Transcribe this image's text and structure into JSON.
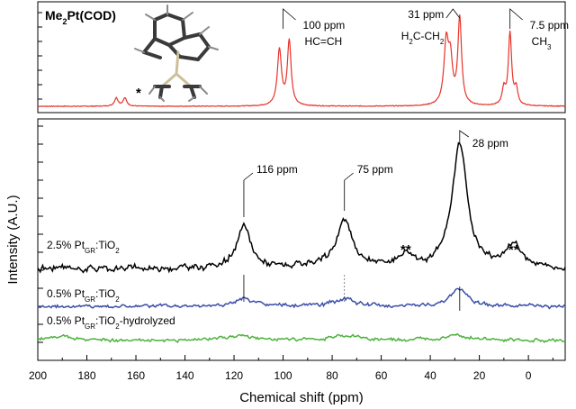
{
  "chart_data": {
    "type": "line",
    "xlabel": "Chemical shift (ppm)",
    "ylabel": "Intensity (A.U.)",
    "x_axis": {
      "range": [
        200,
        -15
      ],
      "reversed": true,
      "ticks": [
        200,
        180,
        160,
        140,
        120,
        100,
        80,
        60,
        40,
        20,
        0
      ]
    },
    "top_panel": {
      "label_main": "Me",
      "label_sub": "2",
      "label_rest": "Pt(COD)",
      "color": "#e8332a",
      "peaks": [
        {
          "x": 168,
          "h": 0.09,
          "w": 0.9
        },
        {
          "x": 164.5,
          "h": 0.09,
          "w": 0.9
        },
        {
          "x": 101.5,
          "h": 0.62,
          "w": 1.0
        },
        {
          "x": 97.5,
          "h": 0.72,
          "w": 0.9
        },
        {
          "x": 33.5,
          "h": 0.68,
          "w": 1.1
        },
        {
          "x": 31.8,
          "h": 0.45,
          "w": 1.0
        },
        {
          "x": 28,
          "h": 0.96,
          "w": 0.9
        },
        {
          "x": 10,
          "h": 0.18,
          "w": 0.8
        },
        {
          "x": 7.5,
          "h": 0.8,
          "w": 0.8
        },
        {
          "x": 5,
          "h": 0.18,
          "w": 0.8
        }
      ],
      "annotations": [
        {
          "x": 100,
          "line1": "100 ppm",
          "line2": "HC=CH"
        },
        {
          "x": 31,
          "line1": "31 ppm",
          "line2": "H",
          "line2_sub": "2",
          "line2_rest": "C-CH",
          "line2_sub2": "2"
        },
        {
          "x": 7.5,
          "line1": "7.5 ppm",
          "line2": "CH",
          "line2_sub": "3"
        }
      ],
      "star": "*"
    },
    "bottom_panel": {
      "series": [
        {
          "name_pre": "2.5% Pt",
          "name_sub": "GR",
          "name_mid": ":TiO",
          "name_sub2": "2",
          "name_post": "",
          "color": "#000000",
          "peaks": [
            {
              "x": 116,
              "h": 45,
              "w": 3.5
            },
            {
              "x": 75,
              "h": 52,
              "w": 4.0
            },
            {
              "x": 50,
              "h": 14,
              "w": 4.0
            },
            {
              "x": 28,
              "h": 140,
              "w": 3.6
            },
            {
              "x": 6,
              "h": 25,
              "w": 4.0
            }
          ]
        },
        {
          "name_pre": "0.5% Pt",
          "name_sub": "GR",
          "name_mid": ":TiO",
          "name_sub2": "2",
          "name_post": "",
          "color": "#3b4ea8",
          "peaks": [
            {
              "x": 116,
              "h": 8,
              "w": 5
            },
            {
              "x": 75,
              "h": 8,
              "w": 5
            },
            {
              "x": 28,
              "h": 20,
              "w": 4
            }
          ]
        },
        {
          "name_pre": "0.5% Pt",
          "name_sub": "GR",
          "name_mid": ":TiO",
          "name_sub2": "2",
          "name_post": "-hydrolyzed",
          "color": "#4db33d",
          "peaks": [
            {
              "x": 190,
              "h": 6,
              "w": 6
            },
            {
              "x": 120,
              "h": 5,
              "w": 8
            },
            {
              "x": 75,
              "h": 5,
              "w": 8
            },
            {
              "x": 30,
              "h": 7,
              "w": 6
            }
          ]
        }
      ],
      "annotations": [
        {
          "x": 116,
          "text": "116 ppm"
        },
        {
          "x": 75,
          "text": "75 ppm"
        },
        {
          "x": 28,
          "text": "28 ppm"
        }
      ],
      "stars": [
        {
          "x": 50,
          "text": "**"
        },
        {
          "x": 6,
          "text": "**"
        }
      ]
    }
  }
}
